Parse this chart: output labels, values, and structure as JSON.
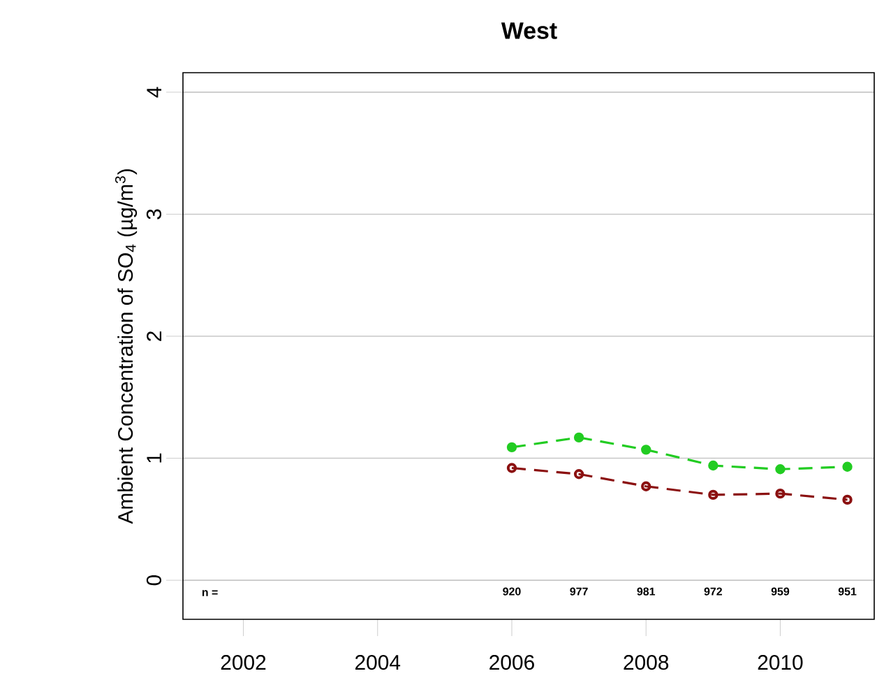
{
  "chart_data": {
    "type": "line",
    "title": "West",
    "ylabel": "Ambient Concentration of SO$_{4}$ (µg/m$^{3}$)",
    "x": [
      2006,
      2007,
      2008,
      2009,
      2010,
      2011
    ],
    "series": [
      {
        "color": "#22cc22",
        "marker": "circle",
        "line_style": "dashed",
        "values": [
          1.09,
          1.17,
          1.07,
          0.94,
          0.91,
          0.93
        ]
      },
      {
        "color": "#8b1010",
        "marker": "open circle",
        "line_style": "dashed",
        "values": [
          0.92,
          0.87,
          0.77,
          0.7,
          0.71,
          0.66
        ]
      }
    ],
    "xlim": [
      2001.1,
      2011.4
    ],
    "ylim": [
      -0.32,
      4.16
    ],
    "xticks": [
      2002,
      2004,
      2006,
      2008,
      2010
    ],
    "yticks": [
      0,
      1,
      2,
      3,
      4
    ],
    "grid": "y",
    "annotations": [
      "n =",
      "920",
      "977",
      "981",
      "972",
      "959",
      "951"
    ]
  }
}
